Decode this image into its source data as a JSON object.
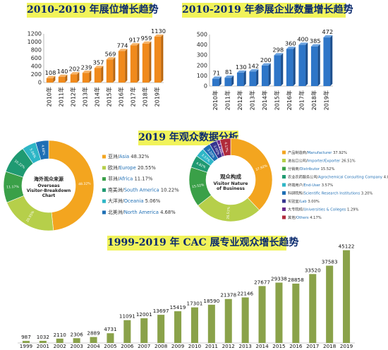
{
  "titles": {
    "booth": "2010-2019 年展位增长趋势",
    "exhibitors": "2010-2019 年参展企业数量增长趋势",
    "visitors": "2019 年观众数据分析",
    "cac": "1999-2019 年 CAC 展专业观众增长趋势"
  },
  "donut_labels": {
    "origin_cn": "海外观众来源",
    "origin_en1": "Overseas",
    "origin_en2": "Visitor-Breakdown",
    "origin_en3": "Chart",
    "nature_cn": "观众构成",
    "nature_en1": "Visitor Nature",
    "nature_en2": "of Business"
  },
  "colors": {
    "bar_orange": "#f08a1c",
    "bar_blue": "#2e76c8",
    "bar_green": "#8aa24a",
    "title_bg": "#f1f35a",
    "title_fg": "#0b2a6e"
  },
  "chart_data": [
    {
      "id": "booth",
      "type": "bar",
      "categories": [
        "2010年",
        "2011年",
        "2012年",
        "2013年",
        "2014年",
        "2015年",
        "2016年",
        "2017年",
        "2018年",
        "2019年"
      ],
      "values": [
        108,
        140,
        202,
        239,
        357,
        569,
        774,
        917,
        959,
        1130
      ],
      "title": "2010-2019 年展位增长趋势",
      "ylim": [
        0,
        1200
      ],
      "yticks": [
        "0",
        "200",
        "400",
        "600",
        "800",
        "1000",
        "1200"
      ],
      "grid": false,
      "style": "3d"
    },
    {
      "id": "exhibitors",
      "type": "bar",
      "categories": [
        "2010年",
        "2011年",
        "2012年",
        "2013年",
        "2014年",
        "2015年",
        "2016年",
        "2017年",
        "2018年",
        "2019年"
      ],
      "values": [
        71,
        81,
        130,
        142,
        200,
        298,
        360,
        400,
        385,
        472
      ],
      "title": "2010-2019 年参展企业数量增长趋势",
      "ylim": [
        0,
        500
      ],
      "yticks": [
        "0",
        "100",
        "200",
        "300",
        "400",
        "500"
      ],
      "grid": false,
      "style": "3d"
    },
    {
      "id": "origin",
      "type": "pie",
      "donut": true,
      "labels": [
        "亚洲/Asia",
        "欧洲/Europe",
        "非洲/Africa",
        "南美洲/South America",
        "大洋洲/Oceania",
        "北美洲/North America"
      ],
      "values": [
        48.32,
        20.55,
        11.17,
        10.22,
        5.06,
        4.68
      ],
      "display": [
        "48.32%",
        "20.55%",
        "11.17%",
        "10.22%",
        "5.06%",
        "4.68%"
      ],
      "colors": [
        "#f3a51f",
        "#b6cf4a",
        "#3aa048",
        "#1f9a72",
        "#2eb6c6",
        "#1e6fb5"
      ],
      "legend_position": "right"
    },
    {
      "id": "nature",
      "type": "pie",
      "donut": true,
      "labels": [
        "产品制造商/Manufacturer",
        "进出口公司/Importer/Exporter",
        "分销商/Distributor",
        "农业农药服务公司/Agrochemical Consulting Company",
        "终端用户/End-User",
        "科研院所/Scientific Research Institutions",
        "实验室/Lab",
        "大专院校/Universities & Colleges",
        "其他/Others"
      ],
      "values": [
        37.92,
        26.51,
        15.52,
        4.82,
        3.57,
        3.2,
        3.0,
        1.29,
        4.17
      ],
      "display": [
        "37.92%",
        "26.51%",
        "15.52%",
        "4.82%",
        "3.57%",
        "3.20%",
        "3.00%",
        "1.29%",
        "4.17%"
      ],
      "colors": [
        "#f3a51f",
        "#b6cf4a",
        "#3aa048",
        "#1f9a72",
        "#2eb6c6",
        "#1e6fb5",
        "#34348f",
        "#6b2a8c",
        "#b02a3a"
      ],
      "legend_position": "right"
    },
    {
      "id": "cac",
      "type": "bar",
      "categories": [
        "1999",
        "2001",
        "2002",
        "2003",
        "2004",
        "2005",
        "2006",
        "2007",
        "2008",
        "2009",
        "2010",
        "2011",
        "2012",
        "2013",
        "2014",
        "2015",
        "2016",
        "2017",
        "2018",
        "2019"
      ],
      "values": [
        987,
        1032,
        2110,
        2306,
        2889,
        4731,
        11091,
        12001,
        13697,
        15419,
        17301,
        18590,
        21378,
        22146,
        27677,
        29338,
        28858,
        33520,
        37583,
        45122
      ],
      "title": "1999-2019 年 CAC 展专业观众增长趋势",
      "ylim": [
        0,
        46000
      ],
      "grid": false
    }
  ]
}
